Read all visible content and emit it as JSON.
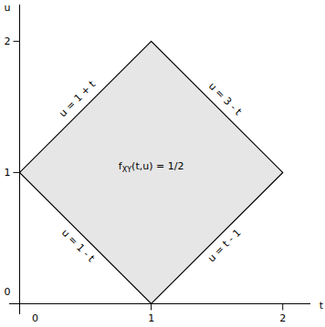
{
  "chart_data": {
    "type": "polygon",
    "x_label": "t",
    "y_label": "u",
    "xlim": [
      -0.08,
      2.21
    ],
    "ylim": [
      -0.08,
      2.28
    ],
    "xticks": [
      0,
      1,
      2
    ],
    "yticks": [
      0,
      1,
      2
    ],
    "x": [
      0,
      1,
      2,
      1
    ],
    "values": [
      1,
      2,
      1,
      0
    ],
    "color": "#e6e6e6",
    "edge_labels": [
      "u = 1 + t",
      "u = 3 - t",
      "u = t - 1",
      "u = 1 - t"
    ],
    "region_label": [
      "f",
      "XY",
      "(t,u) = 1/2"
    ]
  }
}
